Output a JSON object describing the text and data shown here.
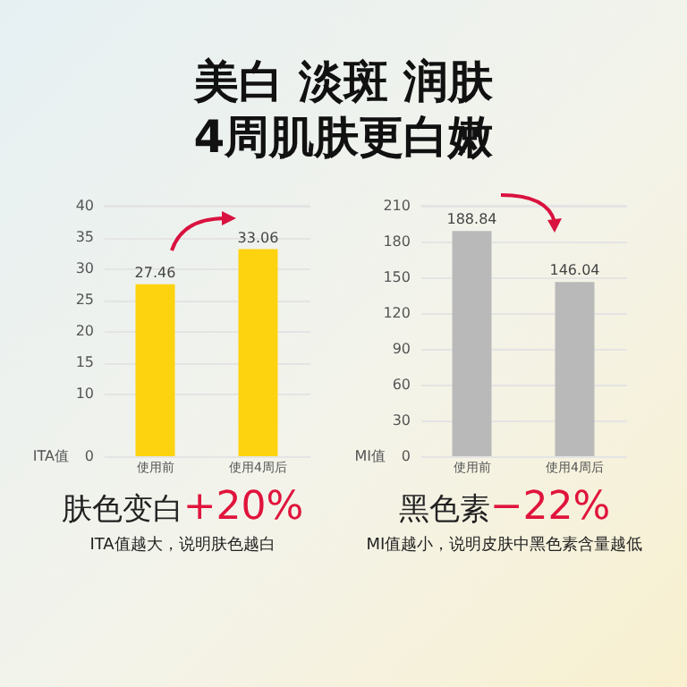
{
  "chart_data": [
    {
      "type": "other",
      "title": "美白 淡斑 润肤",
      "subtitle": "4周肌肤更白嫩"
    },
    {
      "type": "bar",
      "categories": [
        "使用前",
        "使用4周后"
      ],
      "values": [
        27.46,
        33.06
      ],
      "color": "#fdd30f",
      "ylabel": "ITA值",
      "ylim": [
        0,
        40
      ],
      "yticks": [
        0,
        10,
        15,
        20,
        25,
        30,
        35,
        40
      ],
      "grid": "y",
      "data_labels": true,
      "annotations": [
        "肤色变白+20%",
        "ITA值越大，说明肤色越白"
      ]
    },
    {
      "type": "bar",
      "categories": [
        "使用前",
        "使用4周后"
      ],
      "values": [
        188.84,
        146.04
      ],
      "color": "#b9b9b9",
      "ylabel": "MI值",
      "ylim": [
        0,
        210
      ],
      "yticks": [
        0,
        30,
        60,
        90,
        120,
        150,
        180,
        210
      ],
      "grid": "y",
      "data_labels": true,
      "annotations": [
        "黑色素−22%",
        "MI值越小，说明皮肤中黑色素含量越低"
      ]
    }
  ]
}
